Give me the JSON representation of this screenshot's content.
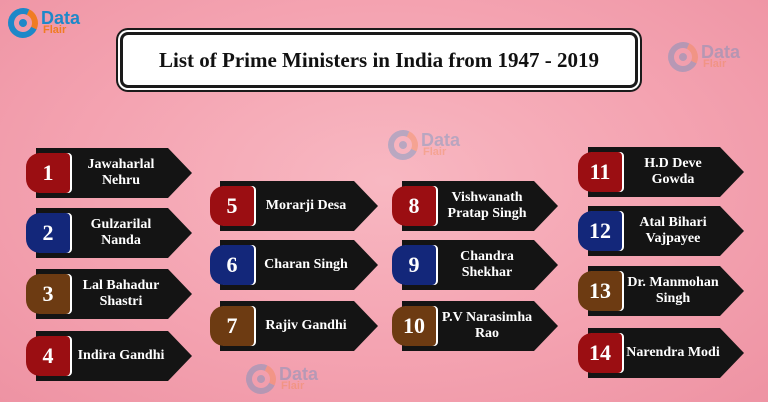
{
  "title": "List of Prime Ministers in India from 1947 - 2019",
  "logo": {
    "line1": "Data",
    "line2": "Flair"
  },
  "colors": {
    "red": "#9b0e12",
    "blue": "#13277a",
    "brown": "#6d3b12",
    "arrow": "#141414"
  },
  "ministers": [
    {
      "num": "1",
      "name": "Jawaharlal Nehru",
      "color": "red"
    },
    {
      "num": "2",
      "name": "Gulzarilal Nanda",
      "color": "blue"
    },
    {
      "num": "3",
      "name": "Lal Bahadur Shastri",
      "color": "brown"
    },
    {
      "num": "4",
      "name": "Indira Gandhi",
      "color": "red"
    },
    {
      "num": "5",
      "name": "Morarji Desa",
      "color": "red"
    },
    {
      "num": "6",
      "name": "Charan Singh",
      "color": "blue"
    },
    {
      "num": "7",
      "name": "Rajiv Gandhi",
      "color": "brown"
    },
    {
      "num": "8",
      "name": "Vishwanath Pratap Singh",
      "color": "red"
    },
    {
      "num": "9",
      "name": "Chandra Shekhar",
      "color": "blue"
    },
    {
      "num": "10",
      "name": "P.V Narasimha Rao",
      "color": "brown"
    },
    {
      "num": "11",
      "name": "H.D Deve Gowda",
      "color": "red"
    },
    {
      "num": "12",
      "name": "Atal Bihari Vajpayee",
      "color": "blue"
    },
    {
      "num": "13",
      "name": "Dr. Manmohan Singh",
      "color": "brown"
    },
    {
      "num": "14",
      "name": "Narendra Modi",
      "color": "red"
    }
  ]
}
